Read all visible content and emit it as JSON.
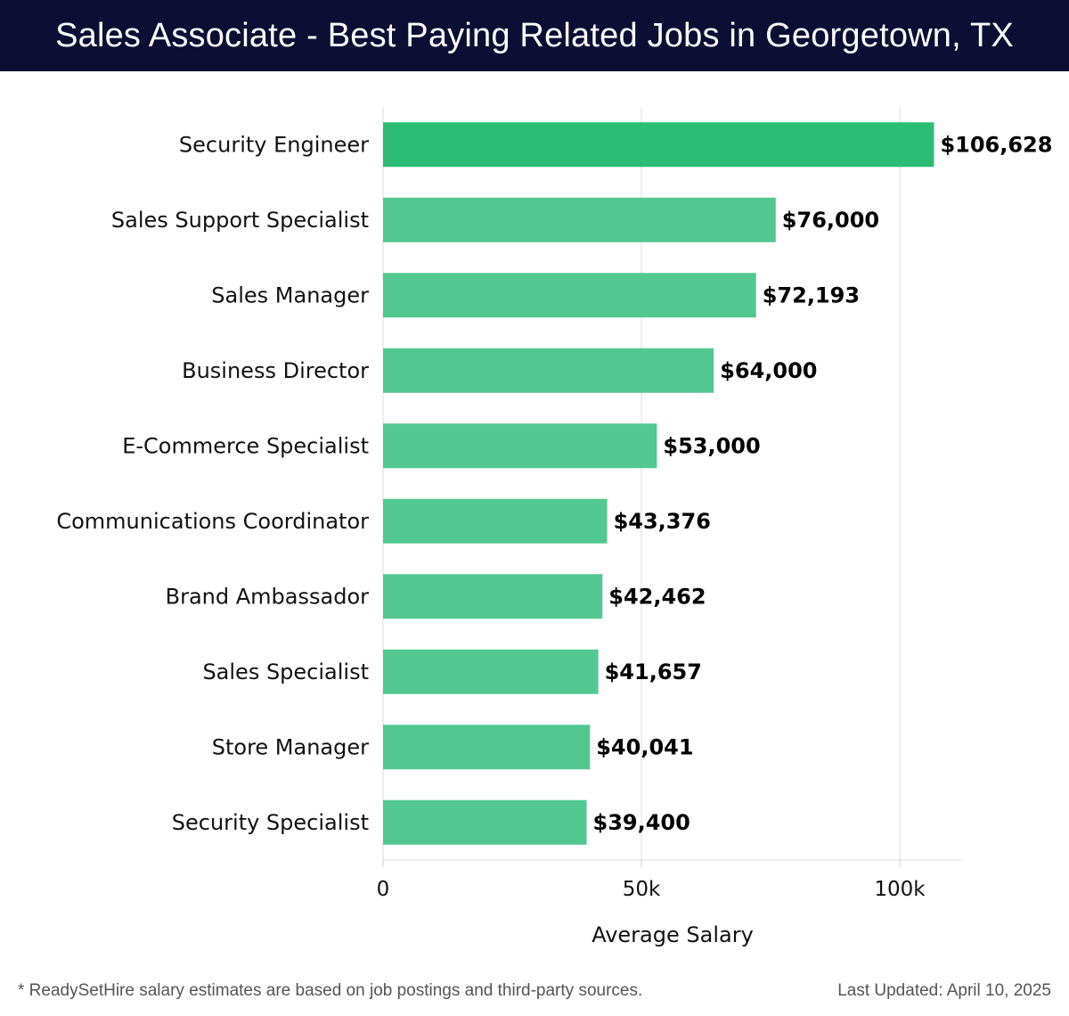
{
  "header": {
    "title": "Sales Associate - Best Paying Related Jobs in Georgetown, TX"
  },
  "colors": {
    "header_bg": "#0c0e33",
    "bar_top": "#2bbd74",
    "bar": "#52c890"
  },
  "chart_data": {
    "type": "bar",
    "orientation": "horizontal",
    "title": "Sales Associate - Best Paying Related Jobs in Georgetown, TX",
    "xlabel": "Average Salary",
    "ylabel": "",
    "xlim": [
      0,
      112000
    ],
    "x_ticks": [
      0,
      50000,
      100000
    ],
    "x_tick_labels": [
      "0",
      "50k",
      "100k"
    ],
    "grid": true,
    "categories": [
      "Security Engineer",
      "Sales Support Specialist",
      "Sales Manager",
      "Business Director",
      "E-Commerce Specialist",
      "Communications Coordinator",
      "Brand Ambassador",
      "Sales Specialist",
      "Store Manager",
      "Security Specialist"
    ],
    "values": [
      106628,
      76000,
      72193,
      64000,
      53000,
      43376,
      42462,
      41657,
      40041,
      39400
    ],
    "value_labels": [
      "$106,628",
      "$76,000",
      "$72,193",
      "$64,000",
      "$53,000",
      "$43,376",
      "$42,462",
      "$41,657",
      "$40,041",
      "$39,400"
    ]
  },
  "footer": {
    "note": "* ReadySetHire salary estimates are based on job postings and third-party sources.",
    "updated": "Last Updated: April 10, 2025"
  }
}
